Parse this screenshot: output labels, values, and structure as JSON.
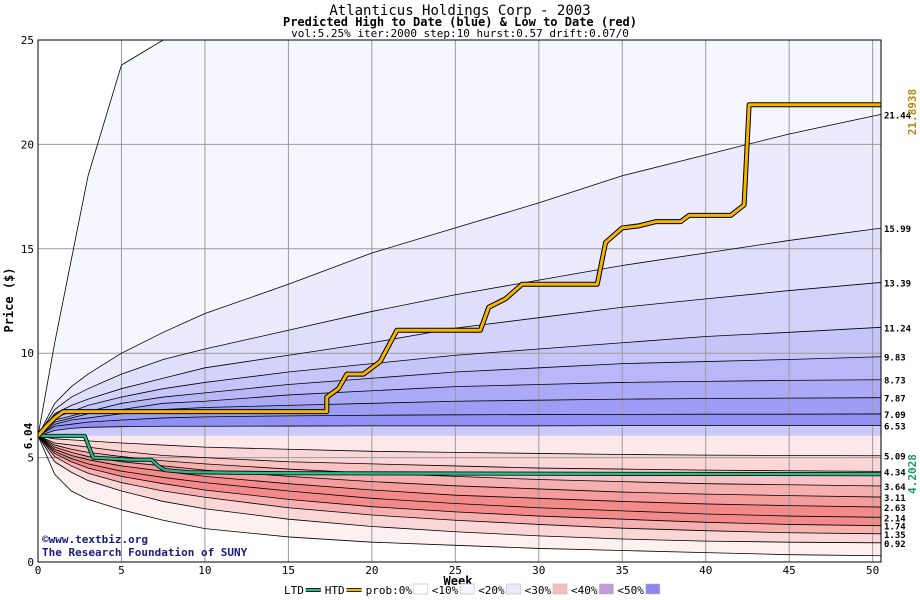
{
  "chart_data": {
    "type": "area",
    "title": "Atlanticus Holdings Corp - 2003",
    "subtitle": "Predicted High to Date (blue) &  Low to Date (red)",
    "params": "vol:5.25% iter:2000 step:10 hurst:0.57 drift:0.07/0",
    "xlabel": "Week",
    "ylabel": "Price ($)",
    "xlim": [
      0,
      50.5
    ],
    "ylim": [
      0,
      25
    ],
    "xticks": [
      0,
      5,
      10,
      15,
      20,
      25,
      30,
      35,
      40,
      45,
      50
    ],
    "yticks": [
      0,
      5,
      10,
      15,
      20,
      25
    ],
    "grid": true,
    "start_price": 6.04,
    "start_label": "6.04",
    "x": [
      0,
      1,
      2,
      3,
      5,
      7.5,
      10,
      15,
      20,
      25,
      30,
      35,
      40,
      45,
      50.5
    ],
    "high_bands": [
      {
        "name": "top",
        "values": [
          6.04,
          10.5,
          14.5,
          18.5,
          23.8,
          26.5,
          27.5,
          28.5,
          29,
          29.5,
          30,
          30,
          30,
          30,
          30
        ]
      },
      {
        "end_label": "21.44",
        "values": [
          6.04,
          7.6,
          8.4,
          9.0,
          10.0,
          11.0,
          11.9,
          13.3,
          14.8,
          16.0,
          17.2,
          18.5,
          19.5,
          20.5,
          21.44
        ]
      },
      {
        "end_label": "15.99",
        "values": [
          6.04,
          7.3,
          7.9,
          8.3,
          9.0,
          9.7,
          10.2,
          11.1,
          12.0,
          12.8,
          13.5,
          14.2,
          14.8,
          15.4,
          15.99
        ]
      },
      {
        "end_label": "13.39",
        "values": [
          6.04,
          7.1,
          7.5,
          7.8,
          8.3,
          8.8,
          9.3,
          9.9,
          10.5,
          11.2,
          11.7,
          12.2,
          12.6,
          13.0,
          13.39
        ]
      },
      {
        "end_label": "11.24",
        "values": [
          6.04,
          6.9,
          7.2,
          7.5,
          7.9,
          8.3,
          8.6,
          9.1,
          9.5,
          9.9,
          10.2,
          10.5,
          10.8,
          11.0,
          11.24
        ]
      },
      {
        "end_label": "9.83",
        "values": [
          6.04,
          6.8,
          7.0,
          7.2,
          7.6,
          7.9,
          8.1,
          8.5,
          8.8,
          9.1,
          9.3,
          9.5,
          9.6,
          9.7,
          9.83
        ]
      },
      {
        "end_label": "8.73",
        "values": [
          6.04,
          6.7,
          6.9,
          7.1,
          7.3,
          7.6,
          7.7,
          8.0,
          8.2,
          8.4,
          8.5,
          8.6,
          8.65,
          8.7,
          8.73
        ]
      },
      {
        "end_label": "7.87",
        "values": [
          6.04,
          6.6,
          6.8,
          6.9,
          7.1,
          7.3,
          7.4,
          7.5,
          7.6,
          7.7,
          7.75,
          7.8,
          7.83,
          7.85,
          7.87
        ]
      },
      {
        "end_label": "7.09",
        "values": [
          6.04,
          6.5,
          6.6,
          6.7,
          6.8,
          6.9,
          6.95,
          7.0,
          7.03,
          7.05,
          7.06,
          7.07,
          7.08,
          7.08,
          7.09
        ]
      },
      {
        "end_label": "6.53",
        "values": [
          6.04,
          6.3,
          6.4,
          6.45,
          6.48,
          6.5,
          6.5,
          6.51,
          6.52,
          6.52,
          6.52,
          6.53,
          6.53,
          6.53,
          6.53
        ]
      }
    ],
    "low_bands": [
      {
        "end_label": "5.09",
        "values": [
          6.04,
          5.9,
          5.85,
          5.8,
          5.7,
          5.6,
          5.5,
          5.4,
          5.3,
          5.25,
          5.2,
          5.15,
          5.12,
          5.1,
          5.09
        ]
      },
      {
        "end_label": "4.34",
        "values": [
          6.04,
          5.7,
          5.6,
          5.5,
          5.3,
          5.1,
          5.0,
          4.8,
          4.7,
          4.6,
          4.5,
          4.45,
          4.4,
          4.37,
          4.34
        ]
      },
      {
        "end_label": "3.64",
        "values": [
          6.04,
          5.6,
          5.4,
          5.25,
          5.05,
          4.85,
          4.7,
          4.45,
          4.25,
          4.1,
          3.95,
          3.85,
          3.75,
          3.7,
          3.64
        ]
      },
      {
        "end_label": "3.11",
        "values": [
          6.04,
          5.5,
          5.25,
          5.05,
          4.8,
          4.6,
          4.4,
          4.1,
          3.85,
          3.65,
          3.5,
          3.35,
          3.25,
          3.18,
          3.11
        ]
      },
      {
        "end_label": "2.63",
        "values": [
          6.04,
          5.4,
          5.1,
          4.9,
          4.6,
          4.35,
          4.1,
          3.75,
          3.45,
          3.2,
          3.05,
          2.9,
          2.78,
          2.7,
          2.63
        ]
      },
      {
        "end_label": "2.14",
        "values": [
          6.04,
          5.3,
          4.95,
          4.7,
          4.35,
          4.05,
          3.8,
          3.4,
          3.05,
          2.8,
          2.6,
          2.45,
          2.3,
          2.2,
          2.14
        ]
      },
      {
        "end_label": "1.74",
        "values": [
          6.04,
          5.2,
          4.8,
          4.5,
          4.1,
          3.75,
          3.45,
          3.0,
          2.65,
          2.4,
          2.2,
          2.05,
          1.9,
          1.8,
          1.74
        ]
      },
      {
        "end_label": "1.35",
        "values": [
          6.04,
          5.05,
          4.6,
          4.25,
          3.8,
          3.4,
          3.1,
          2.6,
          2.25,
          2.0,
          1.8,
          1.62,
          1.5,
          1.4,
          1.35
        ]
      },
      {
        "end_label": "0.92",
        "values": [
          6.04,
          4.8,
          4.3,
          3.9,
          3.4,
          2.9,
          2.55,
          2.05,
          1.7,
          1.45,
          1.25,
          1.1,
          1.0,
          0.95,
          0.92
        ]
      },
      {
        "name": "bottom",
        "values": [
          6.04,
          4.2,
          3.4,
          3.0,
          2.5,
          2.0,
          1.6,
          1.2,
          0.95,
          0.8,
          0.65,
          0.55,
          0.45,
          0.35,
          0.3
        ]
      }
    ],
    "htd_series": {
      "name": "HTD",
      "color": "#f4b400",
      "end_value": 21.8938,
      "end_label": "21.8938",
      "x": [
        0,
        0.5,
        1,
        1.5,
        17.3,
        17.3,
        18,
        18.5,
        19.5,
        20.5,
        21.5,
        26.5,
        27,
        28,
        29,
        33.5,
        34,
        35,
        36,
        37,
        38.5,
        39,
        41.5,
        42.3,
        42.6,
        50.5
      ],
      "y": [
        6.04,
        6.5,
        6.9,
        7.2,
        7.2,
        7.9,
        8.3,
        9.0,
        9.0,
        9.6,
        11.1,
        11.1,
        12.2,
        12.6,
        13.3,
        13.3,
        15.3,
        16.0,
        16.1,
        16.3,
        16.3,
        16.6,
        16.6,
        17.1,
        21.9,
        21.9
      ]
    },
    "ltd_series": {
      "name": "LTD",
      "color": "#2db889",
      "end_value": 4.2028,
      "end_label": "4.2028",
      "x": [
        0,
        2.8,
        3.3,
        5.5,
        6.8,
        7.2,
        7.6,
        9,
        15,
        50.5
      ],
      "y": [
        6.04,
        6.04,
        5.0,
        4.9,
        4.9,
        4.6,
        4.4,
        4.3,
        4.25,
        4.2028
      ]
    },
    "legend": {
      "placement": "bottom",
      "items": [
        {
          "label": "LTD",
          "kind": "line",
          "color": "#2db889"
        },
        {
          "label": "HTD",
          "kind": "line",
          "color": "#f4b400"
        },
        {
          "label": "prob:0%",
          "kind": "swatch",
          "color": "#ffffff"
        },
        {
          "label": "<10%",
          "kind": "swatch",
          "color": "#f6f6fe"
        },
        {
          "label": "<20%",
          "kind": "swatch",
          "color": "#ebebfd"
        },
        {
          "label": "<30%",
          "kind": "swatch",
          "color": "#f5c0c0"
        },
        {
          "label": "<40%",
          "kind": "swatch",
          "color": "#c29ad9"
        },
        {
          "label": "<50%",
          "kind": "swatch",
          "color": "#8e86ee"
        }
      ]
    },
    "colors": {
      "high_fills": [
        "#f6f6fe",
        "#ebebfd",
        "#dfdffc",
        "#d2d2fb",
        "#c5c5f9",
        "#b8b8f8",
        "#aaaaf7",
        "#9d9df5",
        "#9090f4",
        "#c9c9fa"
      ],
      "low_fills": [
        "#fde9e9",
        "#fbd6d6",
        "#f9c3c3",
        "#f7b0b0",
        "#f59c9c",
        "#f38989",
        "#f38989",
        "#f7b0b0",
        "#fbd6d6",
        "#fdf0f0"
      ]
    }
  },
  "watermark": {
    "line1": "©www.textbiz.org",
    "line2": "The Research Foundation of SUNY"
  }
}
